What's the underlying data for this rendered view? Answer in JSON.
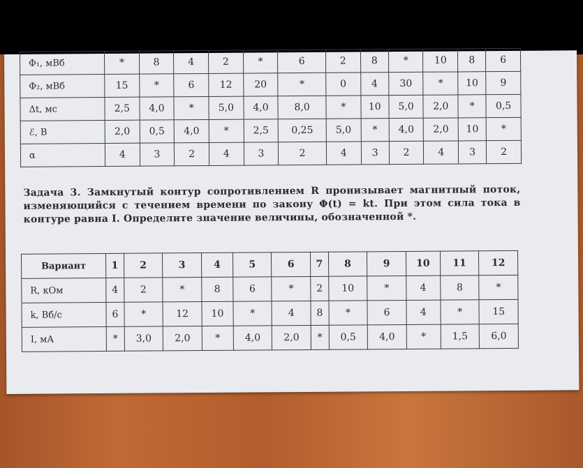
{
  "table1": {
    "rows": [
      {
        "label": "Φ₁, мВб",
        "values": [
          "*",
          "8",
          "4",
          "2",
          "*",
          "6",
          "2",
          "8",
          "*",
          "10",
          "8",
          "6"
        ]
      },
      {
        "label": "Φ₂, мВб",
        "values": [
          "15",
          "*",
          "6",
          "12",
          "20",
          "*",
          "0",
          "4",
          "30",
          "*",
          "10",
          "9"
        ]
      },
      {
        "label": "Δt, мс",
        "values": [
          "2,5",
          "4,0",
          "*",
          "5,0",
          "4,0",
          "8,0",
          "*",
          "10",
          "5,0",
          "2,0",
          "*",
          "0,5"
        ]
      },
      {
        "label": "ℰ, В",
        "values": [
          "2,0",
          "0,5",
          "4,0",
          "*",
          "2,5",
          "0,25",
          "5,0",
          "*",
          "4,0",
          "2,0",
          "10",
          "*"
        ]
      },
      {
        "label": "α",
        "values": [
          "4",
          "3",
          "2",
          "4",
          "3",
          "2",
          "4",
          "3",
          "2",
          "4",
          "3",
          "2"
        ]
      }
    ]
  },
  "task": {
    "title": "Задача 3.",
    "text": "Замкнутый контур сопротивлением R пронизывает магнитный поток, изменяющийся с течением времени по закону Φ(t) = kt. При этом сила тока в контуре равна I. Определите значение величины, обозначенной *."
  },
  "table2": {
    "header": {
      "label": "Вариант",
      "values": [
        "1",
        "2",
        "3",
        "4",
        "5",
        "6",
        "7",
        "8",
        "9",
        "10",
        "11",
        "12"
      ]
    },
    "rows": [
      {
        "label": "R, кОм",
        "values": [
          "4",
          "2",
          "*",
          "8",
          "6",
          "*",
          "2",
          "10",
          "*",
          "4",
          "8",
          "*"
        ]
      },
      {
        "label": "k, Вб/с",
        "values": [
          "6",
          "*",
          "12",
          "10",
          "*",
          "4",
          "8",
          "*",
          "6",
          "4",
          "*",
          "15"
        ]
      },
      {
        "label": "I, мА",
        "values": [
          "*",
          "3,0",
          "2,0",
          "*",
          "4,0",
          "2,0",
          "*",
          "0,5",
          "4,0",
          "*",
          "1,5",
          "6,0"
        ]
      }
    ]
  }
}
